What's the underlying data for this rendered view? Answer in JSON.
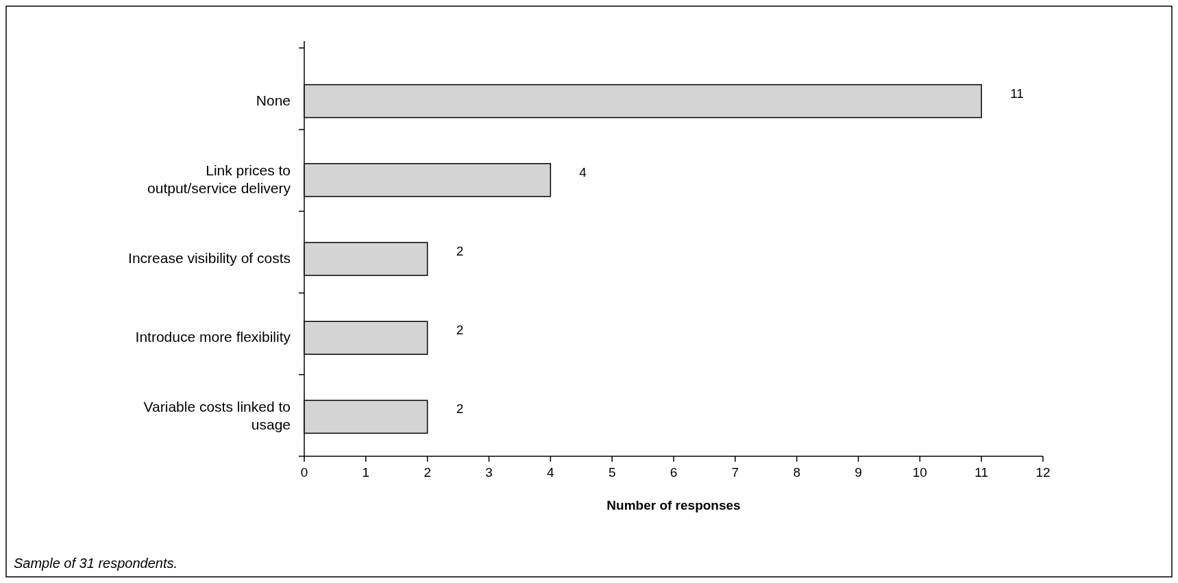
{
  "chart_data": {
    "type": "bar",
    "orientation": "horizontal",
    "xlabel": "Number of responses",
    "categories": [
      "None",
      "Link prices to output/service delivery",
      "Increase visibility of costs",
      "Introduce more flexibility",
      "Variable costs linked to usage"
    ],
    "values": [
      11,
      4,
      2,
      2,
      2
    ],
    "color": "#d4d4d4",
    "xlim": [
      0,
      12
    ],
    "xticks": [
      0,
      1,
      2,
      3,
      4,
      5,
      6,
      7,
      8,
      9,
      10,
      11,
      12
    ],
    "grid": false,
    "data_labels": true,
    "annotations": [
      "Sample of 31 respondents."
    ]
  }
}
